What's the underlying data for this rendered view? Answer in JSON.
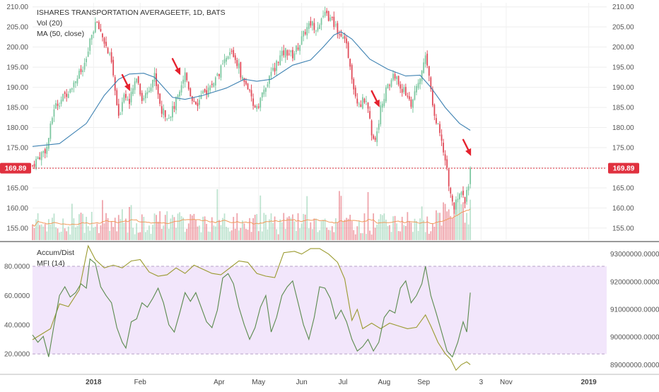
{
  "chart_data": [
    {
      "type": "candlestick",
      "title": "ISHARES TRANSPORTATION AVERAGEETF, 1D, BATS",
      "indicators": [
        "Vol (20)",
        "MA (50, close)"
      ],
      "last_price_label": "169.89",
      "last_price": 169.89,
      "ylim": [
        152,
        211
      ],
      "y_ticks": [
        "155.00",
        "160.00",
        "165.00",
        "170.00",
        "175.00",
        "180.00",
        "185.00",
        "190.00",
        "195.00",
        "200.00",
        "205.00",
        "210.00"
      ],
      "y_tick_values": [
        155,
        160,
        165,
        170,
        175,
        180,
        185,
        190,
        195,
        200,
        205,
        210
      ],
      "close_anchors": [
        {
          "d": 0,
          "v": 170.5
        },
        {
          "d": 3,
          "v": 172.5
        },
        {
          "d": 8,
          "v": 175
        },
        {
          "d": 12,
          "v": 185
        },
        {
          "d": 18,
          "v": 188
        },
        {
          "d": 24,
          "v": 192
        },
        {
          "d": 29,
          "v": 195
        },
        {
          "d": 33,
          "v": 203
        },
        {
          "d": 35,
          "v": 206
        },
        {
          "d": 38,
          "v": 204
        },
        {
          "d": 41,
          "v": 200
        },
        {
          "d": 44,
          "v": 196
        },
        {
          "d": 48,
          "v": 182
        },
        {
          "d": 51,
          "v": 189
        },
        {
          "d": 54,
          "v": 186
        },
        {
          "d": 58,
          "v": 193
        },
        {
          "d": 61,
          "v": 187
        },
        {
          "d": 64,
          "v": 189
        },
        {
          "d": 68,
          "v": 193
        },
        {
          "d": 72,
          "v": 184
        },
        {
          "d": 76,
          "v": 183
        },
        {
          "d": 79,
          "v": 185
        },
        {
          "d": 82,
          "v": 190
        },
        {
          "d": 85,
          "v": 193.5
        },
        {
          "d": 89,
          "v": 187
        },
        {
          "d": 92,
          "v": 186
        },
        {
          "d": 95,
          "v": 188
        },
        {
          "d": 99,
          "v": 190
        },
        {
          "d": 103,
          "v": 193
        },
        {
          "d": 107,
          "v": 196
        },
        {
          "d": 111,
          "v": 199
        },
        {
          "d": 115,
          "v": 195
        },
        {
          "d": 117,
          "v": 192
        },
        {
          "d": 120,
          "v": 190
        },
        {
          "d": 123,
          "v": 185
        },
        {
          "d": 126,
          "v": 186
        },
        {
          "d": 129,
          "v": 189
        },
        {
          "d": 133,
          "v": 193
        },
        {
          "d": 137,
          "v": 197
        },
        {
          "d": 141,
          "v": 199
        },
        {
          "d": 145,
          "v": 198
        },
        {
          "d": 149,
          "v": 201
        },
        {
          "d": 152,
          "v": 204
        },
        {
          "d": 155,
          "v": 206
        },
        {
          "d": 158,
          "v": 205
        },
        {
          "d": 161,
          "v": 207
        },
        {
          "d": 164,
          "v": 208
        },
        {
          "d": 166,
          "v": 207
        },
        {
          "d": 169,
          "v": 205
        },
        {
          "d": 172,
          "v": 203
        },
        {
          "d": 175,
          "v": 200
        },
        {
          "d": 177,
          "v": 196
        },
        {
          "d": 179,
          "v": 190
        },
        {
          "d": 181,
          "v": 187
        },
        {
          "d": 183,
          "v": 186
        },
        {
          "d": 185,
          "v": 187
        },
        {
          "d": 187,
          "v": 184
        },
        {
          "d": 189,
          "v": 179
        },
        {
          "d": 191,
          "v": 177
        },
        {
          "d": 193,
          "v": 182
        },
        {
          "d": 195,
          "v": 187
        },
        {
          "d": 197,
          "v": 189
        },
        {
          "d": 199,
          "v": 191
        },
        {
          "d": 201,
          "v": 193
        },
        {
          "d": 203,
          "v": 192
        },
        {
          "d": 205,
          "v": 190
        },
        {
          "d": 207,
          "v": 189
        },
        {
          "d": 209,
          "v": 188
        },
        {
          "d": 211,
          "v": 186
        },
        {
          "d": 213,
          "v": 188
        },
        {
          "d": 215,
          "v": 191
        },
        {
          "d": 217,
          "v": 194
        },
        {
          "d": 219,
          "v": 197
        },
        {
          "d": 221,
          "v": 193
        },
        {
          "d": 223,
          "v": 186
        },
        {
          "d": 225,
          "v": 182
        },
        {
          "d": 227,
          "v": 178
        },
        {
          "d": 229,
          "v": 174
        },
        {
          "d": 231,
          "v": 170
        },
        {
          "d": 233,
          "v": 163
        },
        {
          "d": 235,
          "v": 159
        },
        {
          "d": 237,
          "v": 163
        },
        {
          "d": 239,
          "v": 165
        },
        {
          "d": 241,
          "v": 162
        },
        {
          "d": 243,
          "v": 166
        },
        {
          "d": 244,
          "v": 169.89
        }
      ],
      "ma_points": [
        {
          "d": 0,
          "v": 175.3
        },
        {
          "d": 15,
          "v": 176
        },
        {
          "d": 30,
          "v": 181
        },
        {
          "d": 40,
          "v": 188
        },
        {
          "d": 48,
          "v": 192
        },
        {
          "d": 54,
          "v": 193.3
        },
        {
          "d": 62,
          "v": 193.5
        },
        {
          "d": 68,
          "v": 192.5
        },
        {
          "d": 78,
          "v": 187.5
        },
        {
          "d": 85,
          "v": 187
        },
        {
          "d": 95,
          "v": 188
        },
        {
          "d": 108,
          "v": 189.8
        },
        {
          "d": 118,
          "v": 192
        },
        {
          "d": 125,
          "v": 191.5
        },
        {
          "d": 133,
          "v": 192
        },
        {
          "d": 145,
          "v": 195.5
        },
        {
          "d": 155,
          "v": 196.8
        },
        {
          "d": 162,
          "v": 200
        },
        {
          "d": 168,
          "v": 203
        },
        {
          "d": 172,
          "v": 203.8
        },
        {
          "d": 178,
          "v": 202
        },
        {
          "d": 188,
          "v": 197
        },
        {
          "d": 198,
          "v": 194.5
        },
        {
          "d": 208,
          "v": 192.8
        },
        {
          "d": 216,
          "v": 193
        },
        {
          "d": 222,
          "v": 190
        },
        {
          "d": 230,
          "v": 185
        },
        {
          "d": 238,
          "v": 181
        },
        {
          "d": 244,
          "v": 179.3
        }
      ],
      "arrow_days": [
        54,
        82,
        193,
        244
      ]
    },
    {
      "type": "line",
      "indicators": [
        "Accum/Dist",
        "MFI (14)"
      ],
      "left_ticks": [
        "20.0000",
        "40.0000",
        "60.0000",
        "80.0000"
      ],
      "left_tick_values": [
        20,
        40,
        60,
        80
      ],
      "left_ylim": [
        7,
        95
      ],
      "right_ticks": [
        "89000000.0000",
        "90000000.0000",
        "91000000.0000",
        "92000000.0000",
        "93000000.0000"
      ],
      "right_tick_values": [
        89000000,
        90000000,
        91000000,
        92000000,
        93000000
      ],
      "right_ylim": [
        88700000,
        93350000
      ],
      "band": [
        20,
        80
      ],
      "series": [
        {
          "key": "accum_dist",
          "color": "#9a9a2e",
          "points": [
            {
              "d": 0,
              "v": 89900000
            },
            {
              "d": 10,
              "v": 90300000
            },
            {
              "d": 15,
              "v": 91200000
            },
            {
              "d": 20,
              "v": 91100000
            },
            {
              "d": 26,
              "v": 91700000
            },
            {
              "d": 31,
              "v": 93300000
            },
            {
              "d": 35,
              "v": 92800000
            },
            {
              "d": 40,
              "v": 92500000
            },
            {
              "d": 45,
              "v": 92600000
            },
            {
              "d": 50,
              "v": 92500000
            },
            {
              "d": 55,
              "v": 92750000
            },
            {
              "d": 60,
              "v": 92800000
            },
            {
              "d": 65,
              "v": 92350000
            },
            {
              "d": 70,
              "v": 92200000
            },
            {
              "d": 75,
              "v": 92250000
            },
            {
              "d": 80,
              "v": 92500000
            },
            {
              "d": 85,
              "v": 92300000
            },
            {
              "d": 90,
              "v": 92600000
            },
            {
              "d": 95,
              "v": 92450000
            },
            {
              "d": 100,
              "v": 92300000
            },
            {
              "d": 105,
              "v": 92250000
            },
            {
              "d": 110,
              "v": 92500000
            },
            {
              "d": 115,
              "v": 92750000
            },
            {
              "d": 120,
              "v": 92700000
            },
            {
              "d": 125,
              "v": 92300000
            },
            {
              "d": 130,
              "v": 92200000
            },
            {
              "d": 135,
              "v": 92150000
            },
            {
              "d": 140,
              "v": 93050000
            },
            {
              "d": 146,
              "v": 93100000
            },
            {
              "d": 150,
              "v": 93000000
            },
            {
              "d": 155,
              "v": 93200000
            },
            {
              "d": 160,
              "v": 93200000
            },
            {
              "d": 165,
              "v": 93000000
            },
            {
              "d": 170,
              "v": 92700000
            },
            {
              "d": 174,
              "v": 92100000
            },
            {
              "d": 178,
              "v": 90600000
            },
            {
              "d": 181,
              "v": 91000000
            },
            {
              "d": 184,
              "v": 90300000
            },
            {
              "d": 189,
              "v": 90500000
            },
            {
              "d": 194,
              "v": 90300000
            },
            {
              "d": 199,
              "v": 90500000
            },
            {
              "d": 204,
              "v": 90400000
            },
            {
              "d": 209,
              "v": 90300000
            },
            {
              "d": 214,
              "v": 90350000
            },
            {
              "d": 219,
              "v": 90800000
            },
            {
              "d": 222,
              "v": 90400000
            },
            {
              "d": 226,
              "v": 89800000
            },
            {
              "d": 230,
              "v": 89400000
            },
            {
              "d": 233,
              "v": 89200000
            },
            {
              "d": 236,
              "v": 88800000
            },
            {
              "d": 239,
              "v": 89000000
            },
            {
              "d": 242,
              "v": 89100000
            },
            {
              "d": 244,
              "v": 89000000
            }
          ]
        },
        {
          "key": "mfi",
          "color": "#5a8a4e",
          "points": [
            {
              "d": 0,
              "v": 33
            },
            {
              "d": 3,
              "v": 28
            },
            {
              "d": 6,
              "v": 32
            },
            {
              "d": 9,
              "v": 18
            },
            {
              "d": 12,
              "v": 40
            },
            {
              "d": 15,
              "v": 60
            },
            {
              "d": 18,
              "v": 66
            },
            {
              "d": 21,
              "v": 59
            },
            {
              "d": 24,
              "v": 62
            },
            {
              "d": 27,
              "v": 68
            },
            {
              "d": 30,
              "v": 65
            },
            {
              "d": 32,
              "v": 85
            },
            {
              "d": 35,
              "v": 82
            },
            {
              "d": 38,
              "v": 66
            },
            {
              "d": 41,
              "v": 60
            },
            {
              "d": 44,
              "v": 55
            },
            {
              "d": 47,
              "v": 38
            },
            {
              "d": 50,
              "v": 28
            },
            {
              "d": 52,
              "v": 24
            },
            {
              "d": 55,
              "v": 42
            },
            {
              "d": 58,
              "v": 44
            },
            {
              "d": 61,
              "v": 55
            },
            {
              "d": 64,
              "v": 52
            },
            {
              "d": 67,
              "v": 58
            },
            {
              "d": 70,
              "v": 65
            },
            {
              "d": 73,
              "v": 55
            },
            {
              "d": 76,
              "v": 40
            },
            {
              "d": 79,
              "v": 35
            },
            {
              "d": 82,
              "v": 48
            },
            {
              "d": 85,
              "v": 62
            },
            {
              "d": 88,
              "v": 56
            },
            {
              "d": 91,
              "v": 62
            },
            {
              "d": 94,
              "v": 52
            },
            {
              "d": 97,
              "v": 42
            },
            {
              "d": 100,
              "v": 38
            },
            {
              "d": 103,
              "v": 50
            },
            {
              "d": 106,
              "v": 72
            },
            {
              "d": 109,
              "v": 75
            },
            {
              "d": 112,
              "v": 68
            },
            {
              "d": 115,
              "v": 52
            },
            {
              "d": 118,
              "v": 40
            },
            {
              "d": 121,
              "v": 30
            },
            {
              "d": 124,
              "v": 38
            },
            {
              "d": 127,
              "v": 52
            },
            {
              "d": 130,
              "v": 60
            },
            {
              "d": 133,
              "v": 35
            },
            {
              "d": 136,
              "v": 45
            },
            {
              "d": 139,
              "v": 60
            },
            {
              "d": 142,
              "v": 66
            },
            {
              "d": 145,
              "v": 70
            },
            {
              "d": 148,
              "v": 55
            },
            {
              "d": 151,
              "v": 40
            },
            {
              "d": 154,
              "v": 30
            },
            {
              "d": 157,
              "v": 45
            },
            {
              "d": 160,
              "v": 66
            },
            {
              "d": 163,
              "v": 65
            },
            {
              "d": 166,
              "v": 58
            },
            {
              "d": 169,
              "v": 44
            },
            {
              "d": 172,
              "v": 50
            },
            {
              "d": 175,
              "v": 42
            },
            {
              "d": 178,
              "v": 30
            },
            {
              "d": 181,
              "v": 22
            },
            {
              "d": 184,
              "v": 25
            },
            {
              "d": 187,
              "v": 30
            },
            {
              "d": 190,
              "v": 22
            },
            {
              "d": 193,
              "v": 28
            },
            {
              "d": 196,
              "v": 45
            },
            {
              "d": 199,
              "v": 50
            },
            {
              "d": 202,
              "v": 48
            },
            {
              "d": 205,
              "v": 65
            },
            {
              "d": 208,
              "v": 70
            },
            {
              "d": 211,
              "v": 55
            },
            {
              "d": 214,
              "v": 60
            },
            {
              "d": 217,
              "v": 68
            },
            {
              "d": 219,
              "v": 80
            },
            {
              "d": 222,
              "v": 60
            },
            {
              "d": 225,
              "v": 48
            },
            {
              "d": 228,
              "v": 35
            },
            {
              "d": 231,
              "v": 22
            },
            {
              "d": 234,
              "v": 18
            },
            {
              "d": 237,
              "v": 28
            },
            {
              "d": 240,
              "v": 42
            },
            {
              "d": 242,
              "v": 35
            },
            {
              "d": 244,
              "v": 62
            }
          ]
        }
      ]
    }
  ],
  "x_axis": {
    "labels": [
      "2018",
      "Feb",
      "Apr",
      "May",
      "Jun",
      "Jul",
      "Aug",
      "Sep",
      "3",
      "Nov",
      "2019"
    ],
    "label_days": [
      34,
      60,
      104,
      126,
      150,
      173,
      196,
      218,
      250,
      264,
      310
    ],
    "bold": [
      "2018",
      "2019"
    ],
    "day_range": [
      0,
      320
    ]
  },
  "colors": {
    "up": "#7cc7a0",
    "down": "#e04a58",
    "ma": "#3e82b2",
    "arrow": "#e5222e",
    "price_label_bg": "#e0313f",
    "band_fill": "#f2e6fb",
    "band_line": "#b7a0c8",
    "vol_ma": "#f09a5a"
  }
}
